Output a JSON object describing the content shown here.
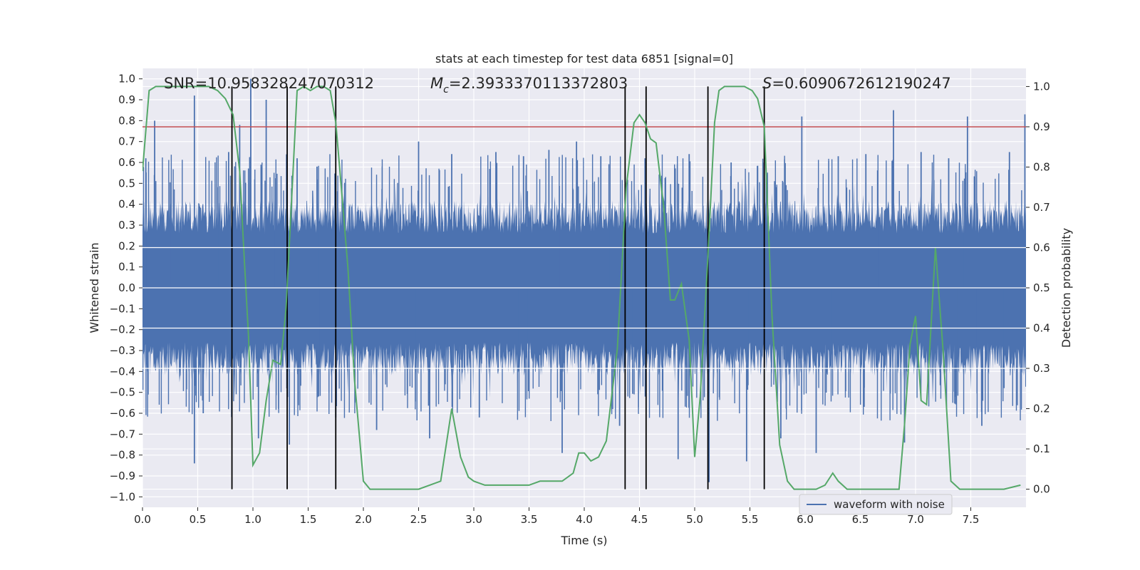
{
  "chart_data": {
    "type": "line",
    "title": "stats at each timestep for test data 6851 [signal=0]",
    "xlabel": "Time (s)",
    "ylabel": "Whitened strain",
    "y2label": "Detection probability",
    "xlim": [
      0.0,
      8.0
    ],
    "ylim": [
      -1.05,
      1.05
    ],
    "y2lim": [
      -0.045,
      1.045
    ],
    "x_ticks": [
      0.0,
      0.5,
      1.0,
      1.5,
      2.0,
      2.5,
      3.0,
      3.5,
      4.0,
      4.5,
      5.0,
      5.5,
      6.0,
      6.5,
      7.0,
      7.5
    ],
    "x_tick_labels": [
      "0.0",
      "0.5",
      "1.0",
      "1.5",
      "2.0",
      "2.5",
      "3.0",
      "3.5",
      "4.0",
      "4.5",
      "5.0",
      "5.5",
      "6.0",
      "6.5",
      "7.0",
      "7.5"
    ],
    "y_ticks": [
      1.0,
      0.9,
      0.8,
      0.7,
      0.6,
      0.5,
      0.4,
      0.3,
      0.2,
      0.1,
      0.0,
      -0.1,
      -0.2,
      -0.3,
      -0.4,
      -0.5,
      -0.6,
      -0.7,
      -0.8,
      -0.9,
      -1.0
    ],
    "y_tick_labels": [
      "1.0",
      "0.9",
      "0.8",
      "0.7",
      "0.6",
      "0.5",
      "0.4",
      "0.3",
      "0.2",
      "0.1",
      "0.0",
      "−0.1",
      "−0.2",
      "−0.3",
      "−0.4",
      "−0.5",
      "−0.6",
      "−0.7",
      "−0.8",
      "−0.9",
      "−1.0"
    ],
    "y2_ticks": [
      1.0,
      0.9,
      0.8,
      0.7,
      0.6,
      0.5,
      0.4,
      0.3,
      0.2,
      0.1,
      0.0
    ],
    "y2_tick_labels": [
      "1.0",
      "0.9",
      "0.8",
      "0.7",
      "0.6",
      "0.5",
      "0.4",
      "0.3",
      "0.2",
      "0.1",
      "0.0"
    ],
    "annotations": {
      "snr": "SNR=10.958328247070312",
      "mc_symbol": "M",
      "mc_subscript": "c",
      "mc_value": "=2.3933370113372803",
      "s_symbol": "S",
      "s_value": "=0.6090672612190247"
    },
    "legend": {
      "label": "waveform with noise",
      "placement": "lower-right"
    },
    "threshold": {
      "y2": 0.9,
      "color": "#c44e52"
    },
    "vertical_lines": [
      0.81,
      1.31,
      1.75,
      4.37,
      4.56,
      5.12,
      5.63
    ],
    "vlines_range_y2": [
      0.0,
      1.0
    ],
    "waveform": {
      "name": "waveform with noise",
      "color": "#4c72b0",
      "x_start": 0.0,
      "x_end": 8.0,
      "n_samples": 1600,
      "band_amplitude": 0.42,
      "spikes": [
        {
          "x": 0.03,
          "y": 0.62
        },
        {
          "x": 0.11,
          "y": 0.8
        },
        {
          "x": 0.47,
          "y": 0.92
        },
        {
          "x": 0.47,
          "y": -0.84
        },
        {
          "x": 0.55,
          "y": -0.6
        },
        {
          "x": 0.78,
          "y": 0.65
        },
        {
          "x": 0.88,
          "y": 0.78
        },
        {
          "x": 0.98,
          "y": 1.0
        },
        {
          "x": 1.05,
          "y": -0.72
        },
        {
          "x": 1.12,
          "y": 0.9
        },
        {
          "x": 1.33,
          "y": -0.75
        },
        {
          "x": 1.4,
          "y": 0.62
        },
        {
          "x": 1.58,
          "y": 0.58
        },
        {
          "x": 1.75,
          "y": -0.62
        },
        {
          "x": 2.12,
          "y": -0.68
        },
        {
          "x": 2.5,
          "y": 0.7
        },
        {
          "x": 2.6,
          "y": -0.72
        },
        {
          "x": 2.8,
          "y": 0.64
        },
        {
          "x": 3.05,
          "y": -0.62
        },
        {
          "x": 3.2,
          "y": 0.65
        },
        {
          "x": 3.45,
          "y": 0.63
        },
        {
          "x": 3.68,
          "y": 0.66
        },
        {
          "x": 3.8,
          "y": -0.79
        },
        {
          "x": 3.93,
          "y": 0.7
        },
        {
          "x": 4.15,
          "y": 0.63
        },
        {
          "x": 4.32,
          "y": -0.66
        },
        {
          "x": 4.55,
          "y": 0.62
        },
        {
          "x": 4.85,
          "y": -0.82
        },
        {
          "x": 4.95,
          "y": 0.64
        },
        {
          "x": 5.13,
          "y": -0.93
        },
        {
          "x": 5.33,
          "y": 0.6
        },
        {
          "x": 5.47,
          "y": -0.83
        },
        {
          "x": 5.63,
          "y": 0.6
        },
        {
          "x": 5.78,
          "y": -0.72
        },
        {
          "x": 5.97,
          "y": 0.82
        },
        {
          "x": 6.1,
          "y": -0.79
        },
        {
          "x": 6.3,
          "y": 0.63
        },
        {
          "x": 6.55,
          "y": 0.64
        },
        {
          "x": 6.8,
          "y": 0.85
        },
        {
          "x": 6.9,
          "y": -0.74
        },
        {
          "x": 7.05,
          "y": 0.65
        },
        {
          "x": 7.3,
          "y": 0.62
        },
        {
          "x": 7.47,
          "y": 0.82
        },
        {
          "x": 7.6,
          "y": -0.66
        },
        {
          "x": 7.85,
          "y": 0.65
        },
        {
          "x": 7.99,
          "y": 0.83
        }
      ]
    },
    "detection_probability": {
      "name": "Detection probability",
      "color": "#55a868",
      "x": [
        0.0,
        0.06,
        0.12,
        0.2,
        0.3,
        0.4,
        0.5,
        0.6,
        0.68,
        0.75,
        0.82,
        0.88,
        0.92,
        0.96,
        1.0,
        1.06,
        1.12,
        1.18,
        1.25,
        1.3,
        1.35,
        1.4,
        1.46,
        1.52,
        1.58,
        1.64,
        1.7,
        1.75,
        1.8,
        1.86,
        1.92,
        2.0,
        2.06,
        2.15,
        2.3,
        2.5,
        2.7,
        2.8,
        2.88,
        2.95,
        3.0,
        3.1,
        3.2,
        3.3,
        3.4,
        3.5,
        3.6,
        3.7,
        3.8,
        3.9,
        3.95,
        4.0,
        4.06,
        4.13,
        4.2,
        4.3,
        4.38,
        4.45,
        4.5,
        4.55,
        4.6,
        4.65,
        4.72,
        4.78,
        4.82,
        4.88,
        4.95,
        5.0,
        5.05,
        5.12,
        5.18,
        5.22,
        5.27,
        5.35,
        5.45,
        5.52,
        5.57,
        5.63,
        5.7,
        5.77,
        5.84,
        5.9,
        6.0,
        6.1,
        6.18,
        6.25,
        6.3,
        6.38,
        6.5,
        6.7,
        6.85,
        6.9,
        6.95,
        7.0,
        7.05,
        7.1,
        7.18,
        7.25,
        7.32,
        7.4,
        7.6,
        7.8,
        7.95
      ],
      "y": [
        0.79,
        0.99,
        1.0,
        1.0,
        1.0,
        1.0,
        1.0,
        1.0,
        0.99,
        0.97,
        0.93,
        0.79,
        0.58,
        0.38,
        0.06,
        0.09,
        0.22,
        0.32,
        0.31,
        0.45,
        0.72,
        0.99,
        1.0,
        0.99,
        1.0,
        1.0,
        0.99,
        0.91,
        0.75,
        0.55,
        0.27,
        0.02,
        0.0,
        0.0,
        0.0,
        0.0,
        0.02,
        0.2,
        0.08,
        0.03,
        0.02,
        0.01,
        0.01,
        0.01,
        0.01,
        0.01,
        0.02,
        0.02,
        0.02,
        0.04,
        0.09,
        0.09,
        0.07,
        0.08,
        0.12,
        0.35,
        0.75,
        0.91,
        0.93,
        0.91,
        0.87,
        0.86,
        0.7,
        0.47,
        0.47,
        0.51,
        0.37,
        0.08,
        0.23,
        0.58,
        0.91,
        0.99,
        1.0,
        1.0,
        1.0,
        0.99,
        0.97,
        0.9,
        0.43,
        0.11,
        0.02,
        0.0,
        0.0,
        0.0,
        0.01,
        0.04,
        0.02,
        0.0,
        0.0,
        0.0,
        0.0,
        0.16,
        0.36,
        0.43,
        0.22,
        0.21,
        0.6,
        0.34,
        0.02,
        0.0,
        0.0,
        0.0,
        0.01
      ]
    }
  }
}
